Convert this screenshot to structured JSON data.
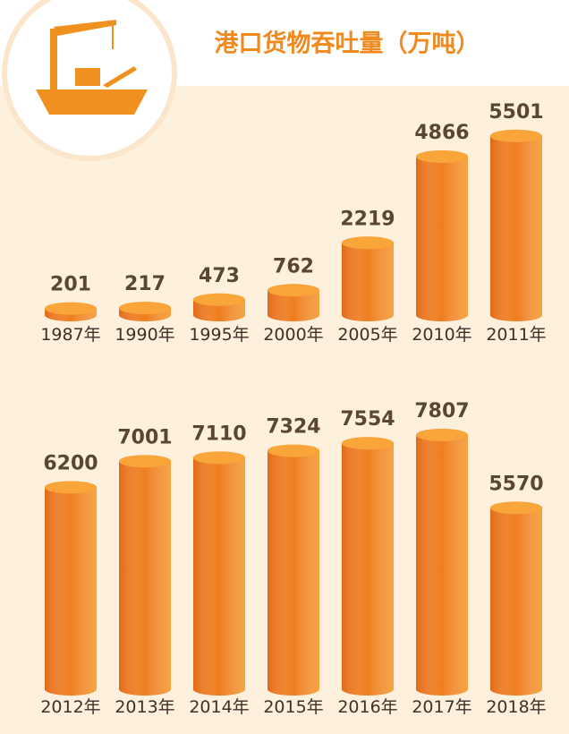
{
  "title": "港口货物吞吐量（万吨）",
  "chart_data": [
    {
      "type": "bar",
      "color": "#ef7d1e",
      "categories": [
        "1987年",
        "1990年",
        "1995年",
        "2000年",
        "2005年",
        "2010年",
        "2011年"
      ],
      "values": [
        201,
        217,
        473,
        762,
        2219,
        4866,
        5501
      ]
    },
    {
      "type": "bar",
      "color": "#ef7d1e",
      "categories": [
        "2012年",
        "2013年",
        "2014年",
        "2015年",
        "2016年",
        "2017年",
        "2018年"
      ],
      "values": [
        6200,
        7001,
        7110,
        7324,
        7554,
        7807,
        5570
      ]
    }
  ]
}
